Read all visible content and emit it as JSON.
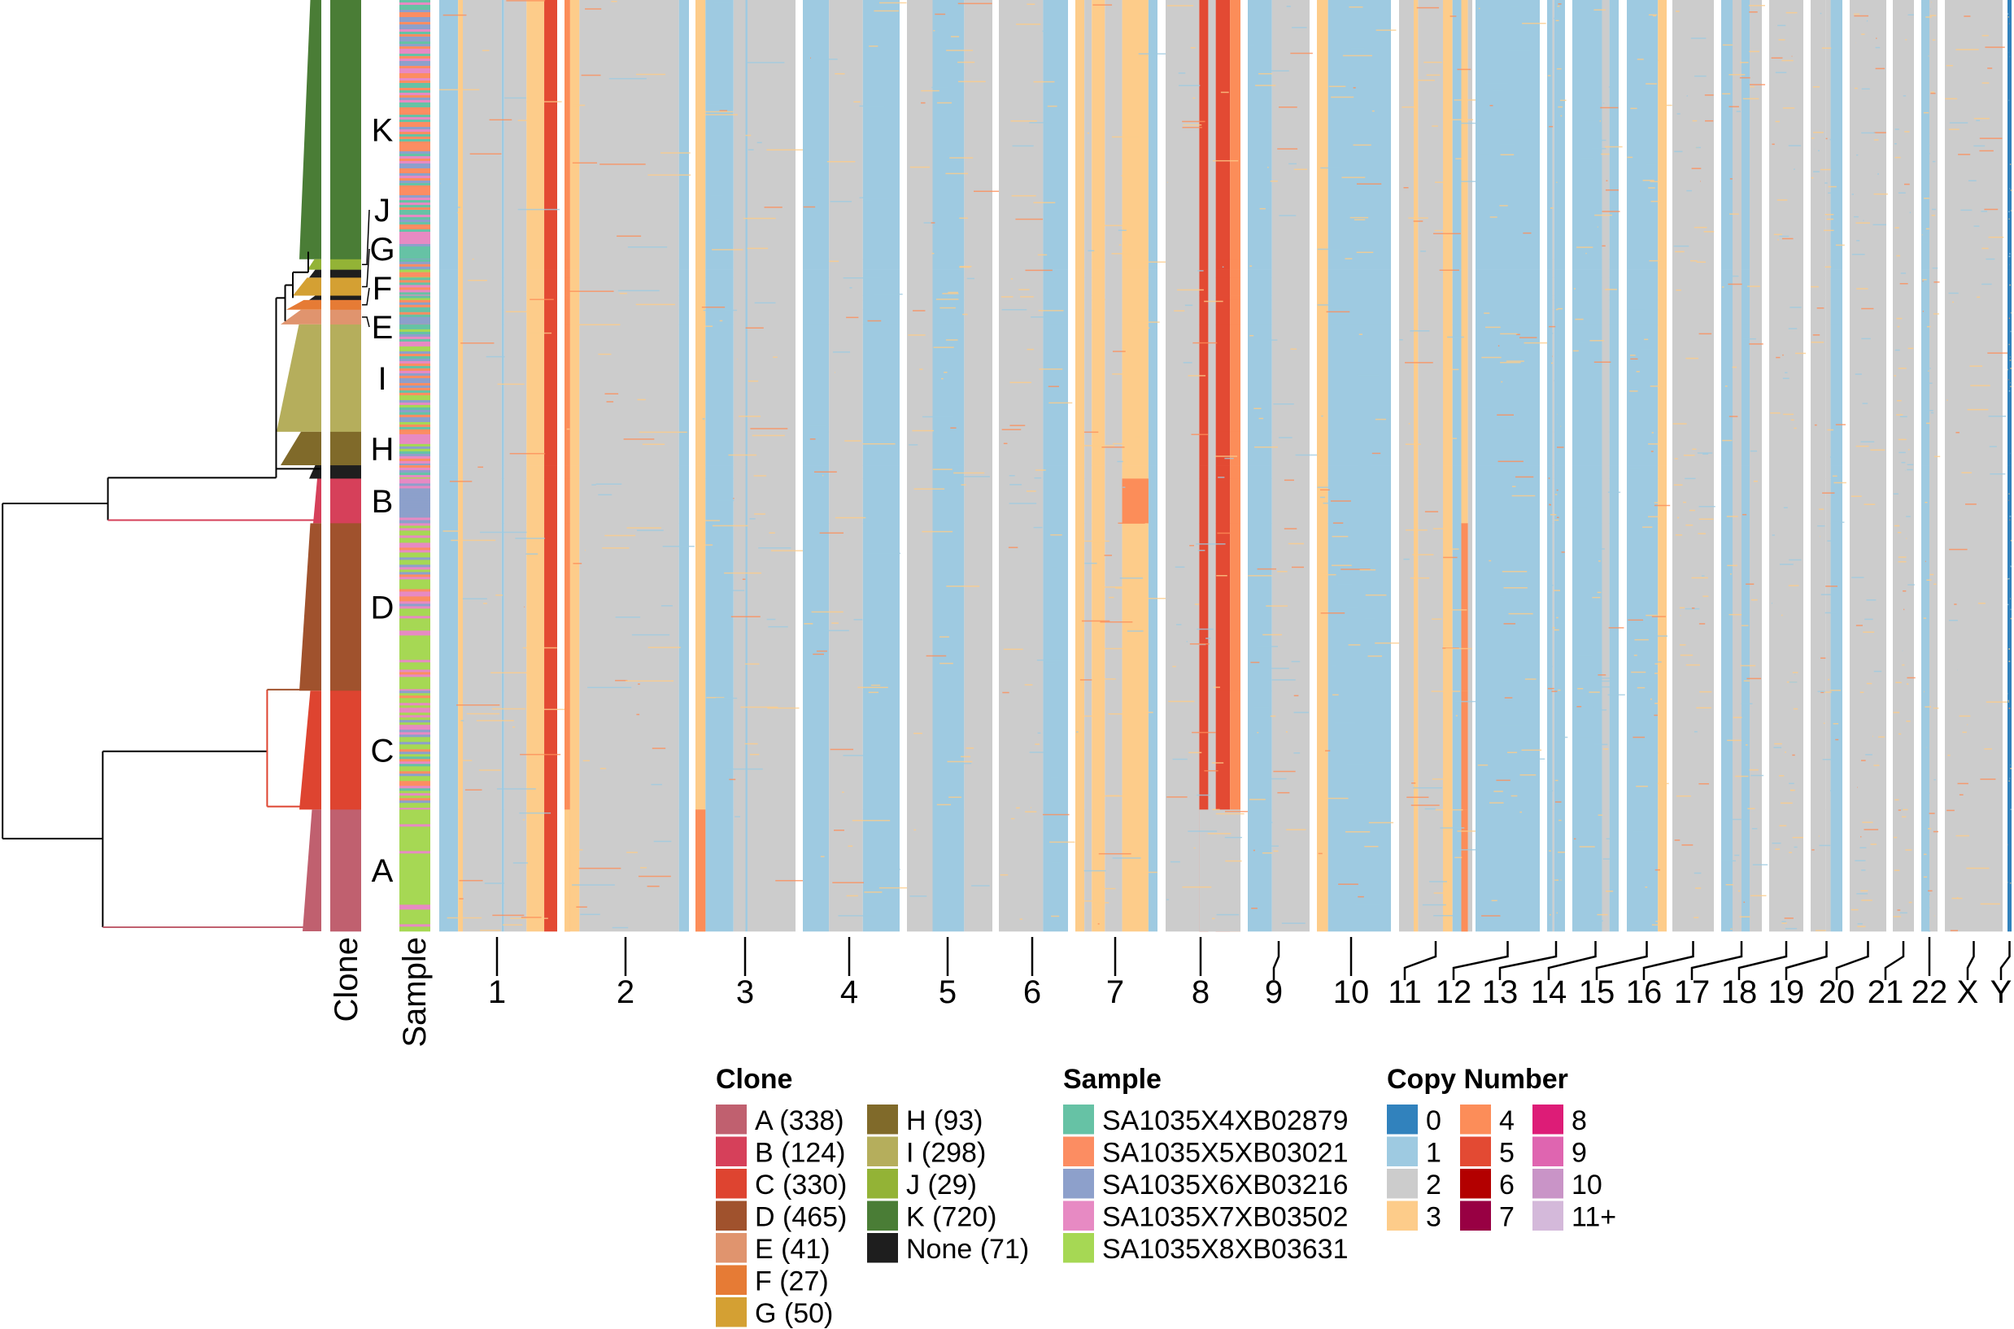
{
  "chart_data": {
    "type": "heatmap",
    "title": "",
    "row_annotation_labels": {
      "clone": "Clone",
      "sample": "Sample"
    },
    "clones": [
      {
        "id": "A",
        "count": 338,
        "color": "#C0606F"
      },
      {
        "id": "B",
        "count": 124,
        "color": "#D6405A"
      },
      {
        "id": "C",
        "count": 330,
        "color": "#DE4430"
      },
      {
        "id": "D",
        "count": 465,
        "color": "#A0522D"
      },
      {
        "id": "E",
        "count": 41,
        "color": "#E0946E"
      },
      {
        "id": "F",
        "count": 27,
        "color": "#E67B35"
      },
      {
        "id": "G",
        "count": 50,
        "color": "#D4A033"
      },
      {
        "id": "H",
        "count": 93,
        "color": "#806A2A"
      },
      {
        "id": "I",
        "count": 298,
        "color": "#B5AE5C"
      },
      {
        "id": "J",
        "count": 29,
        "color": "#93B336"
      },
      {
        "id": "K",
        "count": 720,
        "color": "#4A7D36"
      },
      {
        "id": "None",
        "count": 71,
        "color": "#1E1E1E"
      }
    ],
    "row_order": [
      {
        "clone": "K",
        "cells": 720
      },
      {
        "clone": "J",
        "cells": 29
      },
      {
        "clone": "None",
        "cells": 22
      },
      {
        "clone": "G",
        "cells": 50
      },
      {
        "clone": "None",
        "cells": 12
      },
      {
        "clone": "F",
        "cells": 27
      },
      {
        "clone": "E",
        "cells": 41
      },
      {
        "clone": "I",
        "cells": 298
      },
      {
        "clone": "H",
        "cells": 93
      },
      {
        "clone": "None",
        "cells": 37
      },
      {
        "clone": "B",
        "cells": 124
      },
      {
        "clone": "D",
        "cells": 465
      },
      {
        "clone": "C",
        "cells": 330
      },
      {
        "clone": "A",
        "cells": 338
      }
    ],
    "clone_labels_shown": [
      "K",
      "J",
      "G",
      "F",
      "E",
      "I",
      "H",
      "B",
      "D",
      "C",
      "A"
    ],
    "samples": [
      {
        "name": "SA1035X4XB02879",
        "color": "#66C2A5"
      },
      {
        "name": "SA1035X5XB03021",
        "color": "#FC8D62"
      },
      {
        "name": "SA1035X6XB03216",
        "color": "#8DA0CB"
      },
      {
        "name": "SA1035X7XB03502",
        "color": "#E78AC3"
      },
      {
        "name": "SA1035X8XB03631",
        "color": "#A6D854"
      }
    ],
    "sample_mix_by_clone": {
      "K": [
        3,
        3,
        2,
        2,
        0
      ],
      "J": [
        3,
        3,
        2,
        1,
        0
      ],
      "G": [
        3,
        3,
        2,
        1,
        0
      ],
      "F": [
        2,
        3,
        2,
        1,
        0
      ],
      "E": [
        3,
        3,
        2,
        1,
        0
      ],
      "I": [
        3,
        3,
        3,
        1,
        1
      ],
      "H": [
        1,
        2,
        2,
        3,
        3
      ],
      "None": [
        2,
        2,
        2,
        2,
        2
      ],
      "B": [
        0,
        0,
        9,
        1,
        0
      ],
      "D": [
        0,
        1,
        1,
        3,
        6
      ],
      "C": [
        1,
        1,
        2,
        3,
        4
      ],
      "A": [
        0,
        0,
        0,
        1,
        9
      ]
    },
    "copy_number_states": [
      {
        "label": "0",
        "color": "#3182BD"
      },
      {
        "label": "1",
        "color": "#9ECAE1"
      },
      {
        "label": "2",
        "color": "#CCCCCC"
      },
      {
        "label": "3",
        "color": "#FDCC8A"
      },
      {
        "label": "4",
        "color": "#FC8D59"
      },
      {
        "label": "5",
        "color": "#E34A33"
      },
      {
        "label": "6",
        "color": "#B30000"
      },
      {
        "label": "7",
        "color": "#980043"
      },
      {
        "label": "8",
        "color": "#DD1C77"
      },
      {
        "label": "9",
        "color": "#DF65B0"
      },
      {
        "label": "10",
        "color": "#C994C7"
      },
      {
        "label": "11+",
        "color": "#D4B9DA"
      }
    ],
    "chromosomes": [
      {
        "name": "1",
        "segments": [
          [
            0,
            0.16,
            1
          ],
          [
            0.16,
            0.2,
            3
          ],
          [
            0.2,
            0.53,
            2
          ],
          [
            0.53,
            0.55,
            1
          ],
          [
            0.55,
            0.74,
            2
          ],
          [
            0.74,
            0.89,
            3
          ],
          [
            0.89,
            1,
            5
          ]
        ]
      },
      {
        "name": "2",
        "segments": [
          [
            0,
            0.045,
            4
          ],
          [
            0.045,
            0.12,
            3
          ],
          [
            0.12,
            0.92,
            2
          ],
          [
            0.92,
            1,
            1
          ]
        ]
      },
      {
        "name": "3",
        "segments": [
          [
            0,
            0.1,
            3
          ],
          [
            0.1,
            0.38,
            1
          ],
          [
            0.38,
            0.5,
            2
          ],
          [
            0.5,
            0.52,
            1
          ],
          [
            0.52,
            1,
            2
          ]
        ]
      },
      {
        "name": "4",
        "segments": [
          [
            0,
            0.27,
            1
          ],
          [
            0.27,
            0.62,
            2
          ],
          [
            0.62,
            1,
            1
          ]
        ]
      },
      {
        "name": "5",
        "segments": [
          [
            0,
            0.3,
            2
          ],
          [
            0.3,
            0.67,
            1
          ],
          [
            0.67,
            1,
            2
          ]
        ]
      },
      {
        "name": "6",
        "segments": [
          [
            0,
            0.64,
            2
          ],
          [
            0.64,
            1,
            1
          ]
        ]
      },
      {
        "name": "7",
        "segments": [
          [
            0,
            0.11,
            3
          ],
          [
            0.11,
            0.2,
            2
          ],
          [
            0.2,
            0.36,
            3
          ],
          [
            0.36,
            0.57,
            2
          ],
          [
            0.57,
            0.89,
            3
          ],
          [
            0.89,
            1,
            1
          ]
        ]
      },
      {
        "name": "8",
        "segments": [
          [
            0,
            0.45,
            2
          ],
          [
            0.45,
            0.57,
            5
          ],
          [
            0.57,
            0.67,
            2
          ],
          [
            0.67,
            0.86,
            5
          ],
          [
            0.86,
            1,
            4
          ]
        ]
      },
      {
        "name": "9",
        "segments": [
          [
            0,
            0.39,
            1
          ],
          [
            0.39,
            1,
            2
          ]
        ]
      },
      {
        "name": "10",
        "segments": [
          [
            0,
            0.15,
            3
          ],
          [
            0.15,
            1,
            1
          ]
        ]
      },
      {
        "name": "11",
        "segments": [
          [
            0,
            0.2,
            2
          ],
          [
            0.2,
            0.26,
            3
          ],
          [
            0.26,
            0.6,
            2
          ],
          [
            0.6,
            0.73,
            3
          ],
          [
            0.73,
            0.85,
            1
          ],
          [
            0.85,
            0.94,
            3
          ],
          [
            0.94,
            1,
            2
          ]
        ]
      },
      {
        "name": "12",
        "segments": [
          [
            0,
            1,
            1
          ]
        ]
      },
      {
        "name": "13",
        "segments": [
          [
            0,
            0.3,
            1
          ],
          [
            0.3,
            0.4,
            2
          ],
          [
            0.4,
            1,
            1
          ]
        ]
      },
      {
        "name": "14",
        "segments": [
          [
            0,
            0.64,
            1
          ],
          [
            0.64,
            0.8,
            2
          ],
          [
            0.8,
            1,
            1
          ]
        ]
      },
      {
        "name": "15",
        "segments": [
          [
            0,
            0.78,
            1
          ],
          [
            0.78,
            1,
            3
          ]
        ]
      },
      {
        "name": "16",
        "segments": [
          [
            0,
            1,
            2
          ]
        ]
      },
      {
        "name": "17",
        "segments": [
          [
            0,
            0.28,
            1
          ],
          [
            0.28,
            0.5,
            2
          ],
          [
            0.5,
            0.7,
            1
          ],
          [
            0.7,
            1,
            2
          ]
        ]
      },
      {
        "name": "18",
        "segments": [
          [
            0,
            1,
            2
          ]
        ]
      },
      {
        "name": "19",
        "segments": [
          [
            0,
            0.48,
            2
          ],
          [
            0.48,
            0.63,
            2
          ],
          [
            0.63,
            1,
            1
          ]
        ]
      },
      {
        "name": "20",
        "segments": [
          [
            0,
            1,
            2
          ]
        ]
      },
      {
        "name": "21",
        "segments": [
          [
            0,
            1,
            2
          ]
        ]
      },
      {
        "name": "22",
        "segments": [
          [
            0,
            0.5,
            1
          ],
          [
            0.5,
            1,
            2
          ]
        ]
      },
      {
        "name": "X",
        "segments": [
          [
            0,
            1,
            2
          ]
        ]
      },
      {
        "name": "Y",
        "segments": [
          [
            0,
            1,
            0
          ]
        ]
      }
    ],
    "clone_overrides": [
      {
        "clones": [
          "B"
        ],
        "chromosome": "7",
        "segment": [
          0.57,
          0.89,
          4
        ]
      },
      {
        "clones": [
          "A"
        ],
        "chromosome": "3",
        "segment": [
          0,
          0.1,
          4
        ]
      },
      {
        "clones": [
          "A"
        ],
        "chromosome": "2",
        "segment": [
          0,
          0.045,
          3
        ]
      },
      {
        "clones": [
          "A"
        ],
        "chromosome": "8",
        "segment": [
          0.45,
          1,
          2
        ]
      },
      {
        "clones": [
          "D",
          "C",
          "A"
        ],
        "chromosome": "11",
        "segment": [
          0.85,
          0.94,
          4
        ]
      }
    ]
  },
  "legend": {
    "clone_title": "Clone",
    "clone_items": [
      "A (338)",
      "B (124)",
      "C (330)",
      "D (465)",
      "E (41)",
      "F (27)",
      "G (50)",
      "H (93)",
      "I (298)",
      "J (29)",
      "K (720)",
      "None (71)"
    ],
    "sample_title": "Sample",
    "copy_number_title": "Copy Number"
  }
}
